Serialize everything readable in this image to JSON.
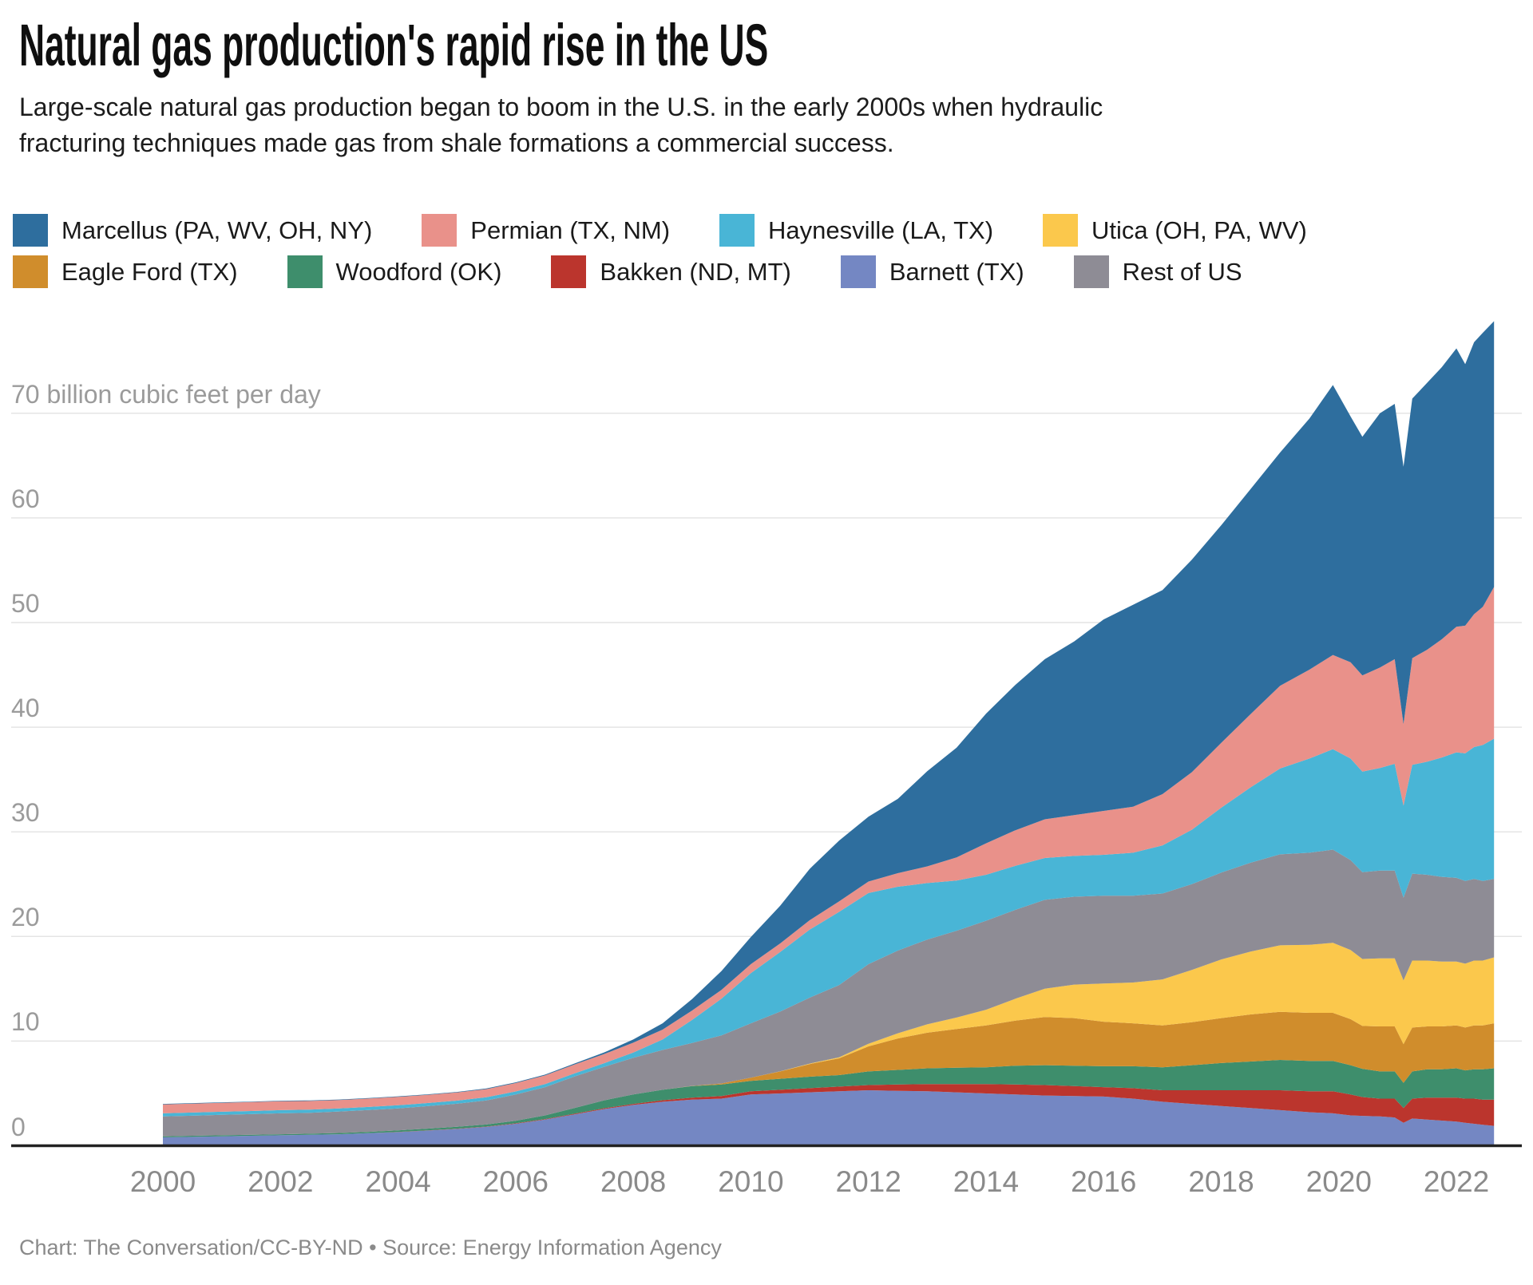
{
  "header": {
    "title": "Natural gas production's rapid rise in the US",
    "subtitle_line1": "Large-scale natural gas production began to boom in the U.S. in the early 2000s when hydraulic",
    "subtitle_line2": "fracturing techniques made gas from shale formations a commercial success."
  },
  "footer": {
    "credit": "Chart: The Conversation/CC-BY-ND • Source: Energy Information Agency"
  },
  "chart_data": {
    "type": "area",
    "stacked": true,
    "title": "Natural gas production's rapid rise in the US",
    "ylabel": "billion cubic feet per day",
    "y_axis": {
      "unit_label": "70 billion cubic feet per day",
      "tick_values": [
        0,
        10,
        20,
        30,
        40,
        50,
        60
      ],
      "tick_labels": [
        "0",
        "10",
        "20",
        "30",
        "40",
        "50",
        "60"
      ],
      "gridline_values": [
        10,
        20,
        30,
        40,
        50,
        60,
        70
      ],
      "ylim": [
        0,
        79
      ],
      "grid": true,
      "grid_color": "#e4e4e4",
      "axis_color": "#222222"
    },
    "x_axis": {
      "tick_values": [
        2000,
        2002,
        2004,
        2006,
        2008,
        2010,
        2012,
        2014,
        2016,
        2018,
        2020,
        2022
      ],
      "tick_labels": [
        "2000",
        "2002",
        "2004",
        "2006",
        "2008",
        "2010",
        "2012",
        "2014",
        "2016",
        "2018",
        "2020",
        "2022"
      ],
      "xlim": [
        2000,
        2022.64
      ]
    },
    "x": [
      2000,
      2000.5,
      2001,
      2001.5,
      2002,
      2002.5,
      2003,
      2003.5,
      2004,
      2004.5,
      2005,
      2005.5,
      2006,
      2006.5,
      2007,
      2007.5,
      2008,
      2008.5,
      2009,
      2009.5,
      2010,
      2010.5,
      2011,
      2011.5,
      2012,
      2012.5,
      2013,
      2013.5,
      2014,
      2014.5,
      2015,
      2015.5,
      2016,
      2016.5,
      2017,
      2017.5,
      2018,
      2018.5,
      2019,
      2019.5,
      2019.9,
      2020.2,
      2020.4,
      2020.7,
      2020.95,
      2021.1,
      2021.25,
      2021.5,
      2021.75,
      2022,
      2022.15,
      2022.3,
      2022.45,
      2022.64
    ],
    "series": [
      {
        "name": "Barnett (TX)",
        "slug": "barnett",
        "color": "#7487c3",
        "values": [
          0.8,
          0.85,
          0.9,
          0.95,
          1,
          1.05,
          1.1,
          1.2,
          1.3,
          1.45,
          1.6,
          1.8,
          2.1,
          2.5,
          3,
          3.5,
          3.9,
          4.2,
          4.4,
          4.5,
          4.9,
          5,
          5.1,
          5.2,
          5.3,
          5.25,
          5.2,
          5.1,
          5,
          4.9,
          4.8,
          4.75,
          4.7,
          4.5,
          4.2,
          4,
          3.8,
          3.6,
          3.4,
          3.2,
          3.1,
          2.9,
          2.85,
          2.8,
          2.7,
          2.2,
          2.6,
          2.5,
          2.4,
          2.3,
          2.2,
          2.1,
          2,
          1.9
        ]
      },
      {
        "name": "Bakken (ND, MT)",
        "slug": "bakken",
        "color": "#bb352d",
        "values": [
          0,
          0,
          0,
          0,
          0,
          0,
          0,
          0,
          0.02,
          0.02,
          0.03,
          0.03,
          0.04,
          0.05,
          0.06,
          0.08,
          0.1,
          0.15,
          0.2,
          0.25,
          0.3,
          0.35,
          0.4,
          0.45,
          0.5,
          0.6,
          0.7,
          0.8,
          0.9,
          0.95,
          1,
          0.95,
          0.9,
          1,
          1.1,
          1.3,
          1.5,
          1.7,
          1.9,
          2,
          2.1,
          2,
          1.8,
          1.7,
          1.8,
          1.4,
          1.9,
          2.1,
          2.2,
          2.3,
          2.3,
          2.4,
          2.4,
          2.5
        ]
      },
      {
        "name": "Woodford (OK)",
        "slug": "woodford",
        "color": "#3e8e6c",
        "values": [
          0.1,
          0.1,
          0.1,
          0.1,
          0.1,
          0.1,
          0.12,
          0.13,
          0.15,
          0.16,
          0.18,
          0.2,
          0.25,
          0.35,
          0.55,
          0.75,
          0.9,
          1,
          1.1,
          1.1,
          1,
          1.05,
          1.1,
          1.1,
          1.3,
          1.4,
          1.5,
          1.55,
          1.6,
          1.8,
          1.9,
          1.95,
          2,
          2.1,
          2.2,
          2.4,
          2.6,
          2.75,
          2.9,
          2.9,
          2.9,
          2.8,
          2.7,
          2.6,
          2.6,
          2.4,
          2.6,
          2.7,
          2.7,
          2.8,
          2.7,
          2.8,
          2.9,
          3
        ]
      },
      {
        "name": "Eagle Ford (TX)",
        "slug": "eagle-ford",
        "color": "#d08d2c",
        "values": [
          0,
          0,
          0,
          0,
          0,
          0,
          0,
          0,
          0,
          0,
          0,
          0,
          0,
          0,
          0,
          0,
          0,
          0,
          0.02,
          0.1,
          0.3,
          0.7,
          1.2,
          1.6,
          2.4,
          3,
          3.4,
          3.7,
          4,
          4.3,
          4.6,
          4.55,
          4.25,
          4.1,
          4,
          4.1,
          4.3,
          4.5,
          4.6,
          4.6,
          4.6,
          4.4,
          4.1,
          4.3,
          4.3,
          3.7,
          4.2,
          4.1,
          4.1,
          4.1,
          4.1,
          4.2,
          4.2,
          4.3
        ]
      },
      {
        "name": "Utica (OH, PA, WV)",
        "slug": "utica",
        "color": "#fbc84c",
        "values": [
          0,
          0,
          0,
          0,
          0,
          0,
          0,
          0,
          0,
          0,
          0,
          0,
          0,
          0,
          0,
          0,
          0,
          0,
          0,
          0,
          0,
          0.02,
          0.05,
          0.1,
          0.25,
          0.5,
          0.8,
          1.1,
          1.5,
          2.1,
          2.7,
          3.2,
          3.65,
          3.9,
          4.4,
          5,
          5.6,
          6,
          6.35,
          6.5,
          6.7,
          6.6,
          6.4,
          6.5,
          6.5,
          6.1,
          6.4,
          6.3,
          6.2,
          6.1,
          6.1,
          6.2,
          6.2,
          6.3
        ]
      },
      {
        "name": "Rest of US",
        "slug": "rest-of-us",
        "color": "#8e8c95",
        "values": [
          1.9,
          1.92,
          1.95,
          1.97,
          2,
          2,
          2.05,
          2.08,
          2.1,
          2.15,
          2.2,
          2.3,
          2.5,
          2.7,
          3,
          3.2,
          3.5,
          3.8,
          4.1,
          4.6,
          5.2,
          5.7,
          6.3,
          6.9,
          7.6,
          7.9,
          8.1,
          8.3,
          8.5,
          8.5,
          8.5,
          8.4,
          8.4,
          8.3,
          8.2,
          8.2,
          8.3,
          8.5,
          8.7,
          8.8,
          8.9,
          8.6,
          8.3,
          8.4,
          8.4,
          7.9,
          8.3,
          8.2,
          8.1,
          8,
          7.9,
          7.8,
          7.6,
          7.5
        ]
      },
      {
        "name": "Haynesville (LA, TX)",
        "slug": "haynesville",
        "color": "#49b5d6",
        "values": [
          0.3,
          0.3,
          0.3,
          0.3,
          0.3,
          0.3,
          0.3,
          0.3,
          0.3,
          0.3,
          0.3,
          0.3,
          0.3,
          0.3,
          0.3,
          0.35,
          0.5,
          1,
          2.2,
          3.5,
          4.8,
          5.7,
          6.5,
          7,
          6.8,
          6.1,
          5.4,
          4.8,
          4.4,
          4.2,
          4,
          3.9,
          3.9,
          4.1,
          4.6,
          5.2,
          6.2,
          7.2,
          8.2,
          9,
          9.6,
          9.7,
          9.6,
          9.8,
          10.2,
          8.8,
          10.4,
          10.8,
          11.4,
          12,
          12.2,
          12.6,
          13,
          13.4
        ]
      },
      {
        "name": "Permian (TX, NM)",
        "slug": "permian",
        "color": "#e9918a",
        "values": [
          0.85,
          0.85,
          0.85,
          0.85,
          0.85,
          0.83,
          0.8,
          0.8,
          0.8,
          0.78,
          0.78,
          0.78,
          0.8,
          0.82,
          0.85,
          0.87,
          0.95,
          0.95,
          0.9,
          0.85,
          0.85,
          0.82,
          0.9,
          1,
          1.1,
          1.3,
          1.6,
          2.2,
          3,
          3.4,
          3.7,
          3.9,
          4.2,
          4.4,
          4.9,
          5.5,
          6.2,
          7,
          7.9,
          8.5,
          9,
          9.2,
          9.2,
          9.6,
          10,
          7.8,
          10.2,
          10.7,
          11.3,
          12,
          12.2,
          12.7,
          13.2,
          14.5
        ]
      },
      {
        "name": "Marcellus (PA, WV, OH, NY)",
        "slug": "marcellus",
        "color": "#2e6e9e",
        "values": [
          0.05,
          0.05,
          0.05,
          0.05,
          0.05,
          0.05,
          0.05,
          0.05,
          0.05,
          0.05,
          0.05,
          0.06,
          0.07,
          0.08,
          0.1,
          0.15,
          0.3,
          0.6,
          1.1,
          1.8,
          2.6,
          3.6,
          4.9,
          5.8,
          6.2,
          7.1,
          9.1,
          10.5,
          12.4,
          13.9,
          15.3,
          16.6,
          18.3,
          19.3,
          19.5,
          20.3,
          20.8,
          21.5,
          22.3,
          24,
          25.8,
          23.5,
          22.8,
          24.3,
          24.4,
          24.6,
          24.8,
          25.5,
          26,
          26.6,
          25,
          26,
          26.2,
          25.4
        ]
      }
    ],
    "legend": {
      "rows": [
        [
          "Marcellus (PA, WV, OH, NY)",
          "Permian (TX, NM)",
          "Haynesville (LA, TX)",
          "Utica (OH, PA, WV)"
        ],
        [
          "Eagle Ford (TX)",
          "Woodford (OK)",
          "Bakken (ND, MT)",
          "Barnett (TX)",
          "Rest of US"
        ]
      ],
      "position": "top"
    }
  }
}
